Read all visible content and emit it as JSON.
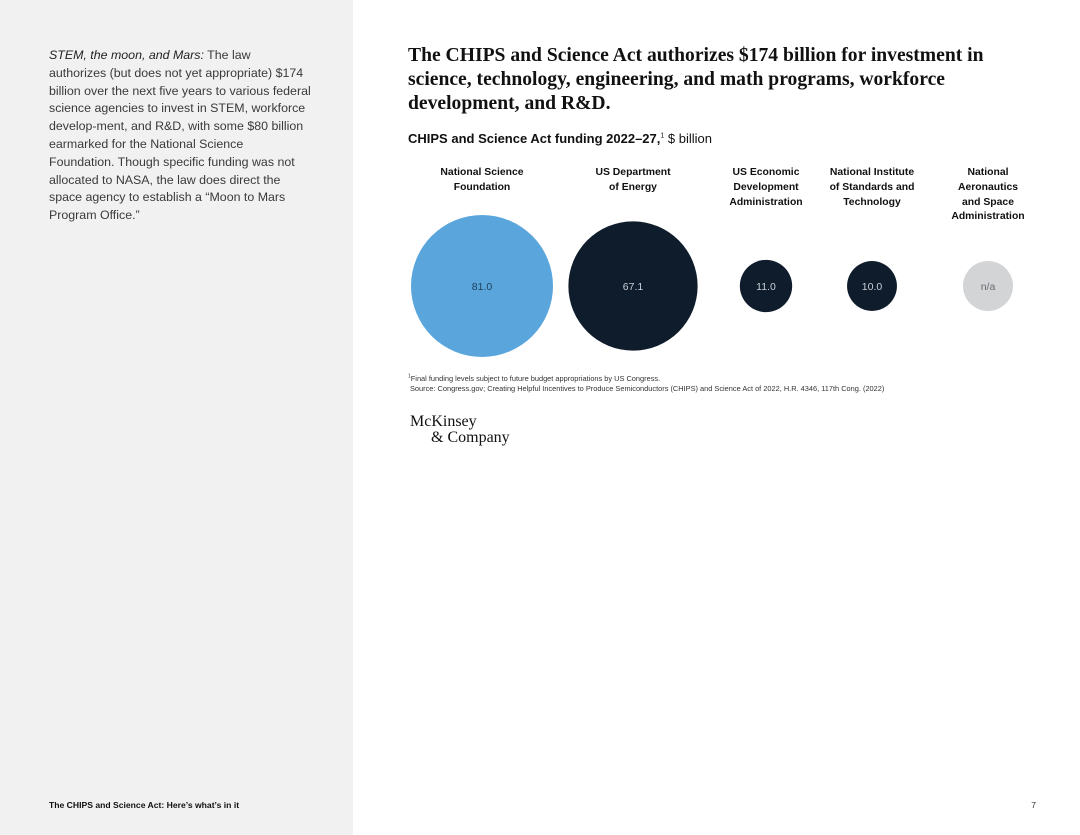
{
  "sidebar": {
    "lead": "STEM, the moon, and Mars:",
    "body": " The law authorizes (but does not yet appropriate) $174 billion over the next five years to various federal science agencies to invest in STEM, workforce develop-ment, and R&D, with some $80 billion earmarked for the National Science Foundation. Though specific funding was not allocated to NASA, the law does direct the space agency to establish a “Moon to Mars Program Office.”"
  },
  "headline": "The CHIPS and Science Act authorizes $174 billion for investment in science, technology, engineering, and math programs, workforce development, and R&D.",
  "footnote": {
    "marker": "1",
    "text": "Final funding levels subject to future budget appropriations by US Congress.",
    "source": "Source: Congress.gov; Creating Helpful Incentives to Produce Semiconductors (CHIPS) and Science Act of 2022, H.R. 4346, 117th Cong. (2022)"
  },
  "logo": {
    "line1": "McKinsey",
    "line2": "& Company"
  },
  "footer": {
    "title": "The CHIPS and Science Act: Here’s what’s in it",
    "page_number": "7"
  },
  "chart_data": {
    "type": "bubble",
    "title": "CHIPS and Science Act funding 2022–27,",
    "title_superscript": "1",
    "unit": " $ billion",
    "categories": [
      "National Science Foundation",
      "US Department of Energy",
      "US Economic Development Administration",
      "National Institute of Standards and Technology",
      "National Aeronautics and Space Administration"
    ],
    "values": [
      81.0,
      67.1,
      11.0,
      10.0,
      null
    ],
    "value_labels": [
      "81.0",
      "67.1",
      "11.0",
      "10.0",
      "n/a"
    ],
    "colors": [
      "#5aa6dc",
      "#0f1c2b",
      "#0f1c2b",
      "#0f1c2b",
      "#d3d4d6"
    ],
    "value_text_colors": [
      "#1f3d5a",
      "#c9ced6",
      "#c9ced6",
      "#c9ced6",
      "#666a70"
    ]
  }
}
